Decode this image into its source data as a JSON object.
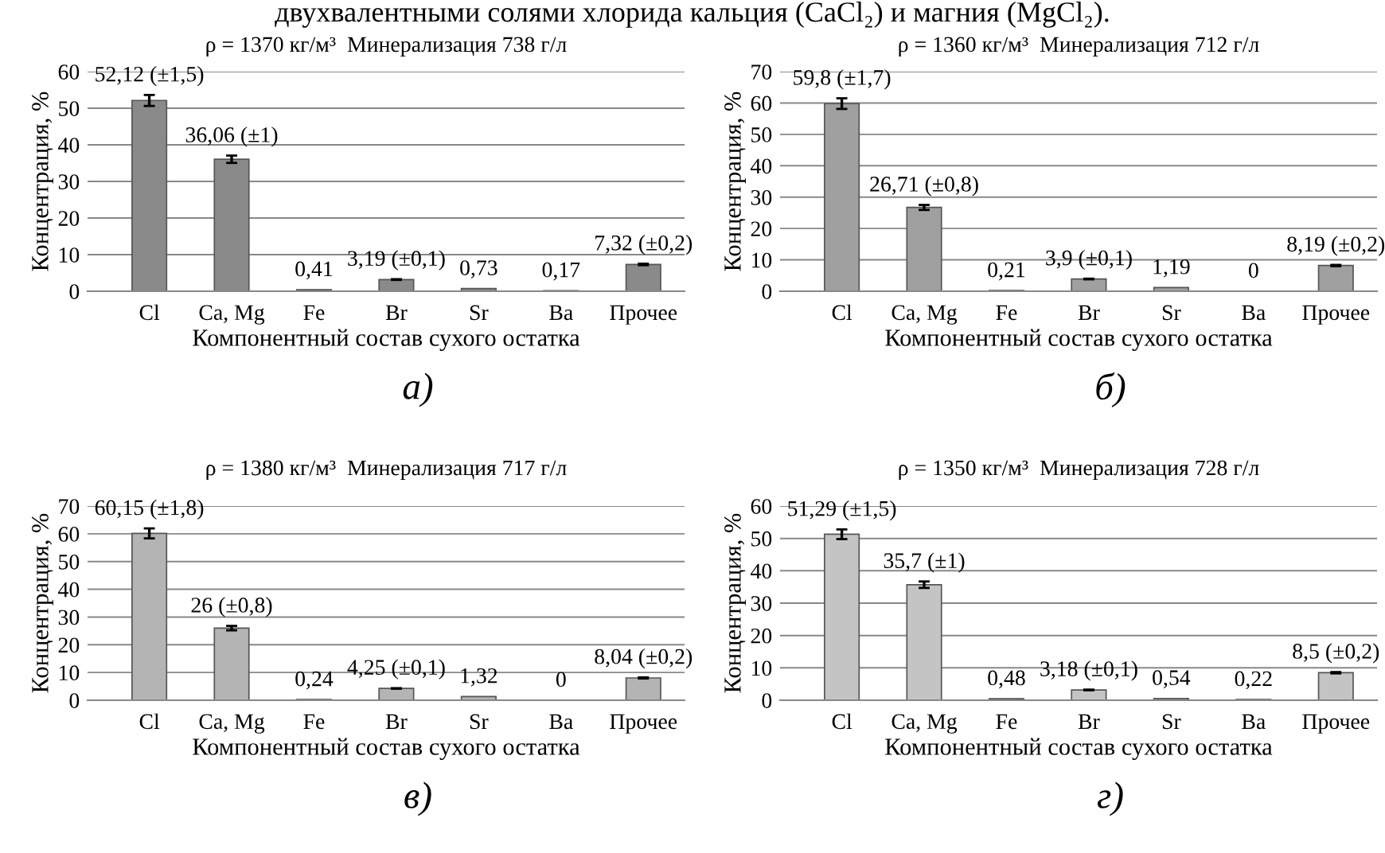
{
  "chart_data": [
    {
      "type": "bar",
      "title": "ρ = 1370 кг/м³  Минерализация 738 г/л",
      "xlabel": "Компонентный состав сухого остатка",
      "ylabel": "Концентрация, %",
      "categories": [
        "Cl",
        "Ca, Mg",
        "Fe",
        "Br",
        "Sr",
        "Ba",
        "Прочее"
      ],
      "values": [
        52.12,
        36.06,
        0.41,
        3.19,
        0.73,
        0.17,
        7.32
      ],
      "errors": [
        1.5,
        1,
        null,
        0.1,
        null,
        null,
        0.2
      ],
      "value_labels": [
        "52,12 (±1,5)",
        "36,06 (±1)",
        "0,41",
        "3,19 (±0,1)",
        "0,73",
        "0,17",
        "7,32 (±0,2)"
      ],
      "color": "#8a8a8a",
      "ylim": [
        0,
        60
      ],
      "yticks": [
        0,
        10,
        20,
        30,
        40,
        50,
        60
      ],
      "grid": "y",
      "annotations": [
        "а)",
        "двухвалентными солями хлорида кальция (CaCl₂) и магния (MgCl₂)."
      ]
    },
    {
      "type": "bar",
      "title": "ρ = 1360 кг/м³  Минерализация 712 г/л",
      "xlabel": "Компонентный состав сухого остатка",
      "ylabel": "Концентрация, %",
      "categories": [
        "Cl",
        "Ca, Mg",
        "Fe",
        "Br",
        "Sr",
        "Ba",
        "Прочее"
      ],
      "values": [
        59.8,
        26.71,
        0.21,
        3.9,
        1.19,
        0,
        8.19
      ],
      "errors": [
        1.7,
        0.8,
        null,
        0.1,
        null,
        null,
        0.2
      ],
      "value_labels": [
        "59,8 (±1,7)",
        "26,71 (±0,8)",
        "0,21",
        "3,9 (±0,1)",
        "1,19",
        "0",
        "8,19 (±0,2)"
      ],
      "color": "#a0a0a0",
      "ylim": [
        0,
        70
      ],
      "yticks": [
        0,
        10,
        20,
        30,
        40,
        50,
        60,
        70
      ],
      "grid": "y",
      "annotations": [
        "б)"
      ]
    },
    {
      "type": "bar",
      "title": "ρ = 1380 кг/м³  Минерализация 717 г/л",
      "xlabel": "Компонентный состав сухого остатка",
      "ylabel": "Концентрация, %",
      "categories": [
        "Cl",
        "Ca, Mg",
        "Fe",
        "Br",
        "Sr",
        "Ba",
        "Прочее"
      ],
      "values": [
        60.15,
        26,
        0.24,
        4.25,
        1.32,
        0,
        8.04
      ],
      "errors": [
        1.8,
        0.8,
        null,
        0.1,
        null,
        null,
        0.2
      ],
      "value_labels": [
        "60,15 (±1,8)",
        "26 (±0,8)",
        "0,24",
        "4,25 (±0,1)",
        "1,32",
        "0",
        "8,04 (±0,2)"
      ],
      "color": "#b4b4b4",
      "ylim": [
        0,
        70
      ],
      "yticks": [
        0,
        10,
        20,
        30,
        40,
        50,
        60,
        70
      ],
      "grid": "y",
      "annotations": [
        "в)"
      ]
    },
    {
      "type": "bar",
      "title": "ρ = 1350 кг/м³  Минерализация 728 г/л",
      "xlabel": "Компонентный состав сухого остатка",
      "ylabel": "Концентрация, %",
      "categories": [
        "Cl",
        "Ca, Mg",
        "Fe",
        "Br",
        "Sr",
        "Ba",
        "Прочее"
      ],
      "values": [
        51.29,
        35.7,
        0.48,
        3.18,
        0.54,
        0.22,
        8.5
      ],
      "errors": [
        1.5,
        1,
        null,
        0.1,
        null,
        null,
        0.2
      ],
      "value_labels": [
        "51,29 (±1,5)",
        "35,7 (±1)",
        "0,48",
        "3,18 (±0,1)",
        "0,54",
        "0,22",
        "8,5 (±0,2)"
      ],
      "color": "#c4c4c4",
      "ylim": [
        0,
        60
      ],
      "yticks": [
        0,
        10,
        20,
        30,
        40,
        50,
        60
      ],
      "grid": "y",
      "annotations": [
        "г)"
      ]
    }
  ]
}
